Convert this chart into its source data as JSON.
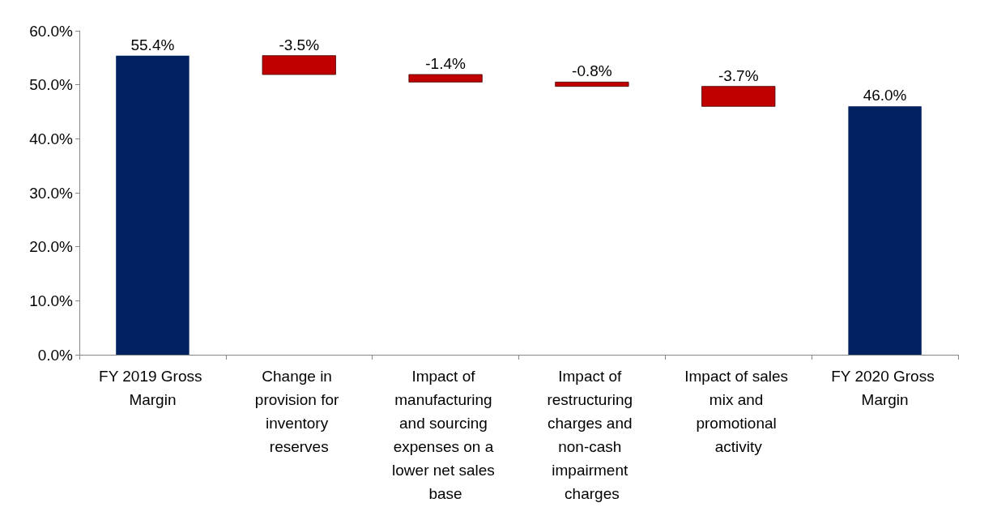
{
  "chart_data": {
    "type": "bar",
    "categories": [
      "FY 2019 Gross Margin",
      "Change in provision for inventory reserves",
      "Impact of manufacturing and sourcing expenses on a lower net sales base",
      "Impact of restructuring charges and non-cash impairment charges",
      "Impact of sales mix and promotional activity",
      "FY 2020 Gross Margin"
    ],
    "values": [
      55.4,
      -3.5,
      -1.4,
      -0.8,
      -3.7,
      46.0
    ],
    "base": [
      0,
      55.4,
      51.9,
      50.5,
      49.7,
      0
    ],
    "colors": [
      "#002060",
      "#c00000",
      "#c00000",
      "#c00000",
      "#c00000",
      "#002060"
    ],
    "value_labels": [
      "55.4%",
      "-3.5%",
      "-1.4%",
      "-0.8%",
      "-3.7%",
      "46.0%"
    ],
    "ylim": [
      0,
      60
    ],
    "yticks": [
      {
        "value": 0,
        "label": "0.0%"
      },
      {
        "value": 10,
        "label": "10.0%"
      },
      {
        "value": 20,
        "label": "20.0%"
      },
      {
        "value": 30,
        "label": "30.0%"
      },
      {
        "value": 40,
        "label": "40.0%"
      },
      {
        "value": 50,
        "label": "50.0%"
      },
      {
        "value": 60,
        "label": "60.0%"
      }
    ],
    "grid": false
  }
}
